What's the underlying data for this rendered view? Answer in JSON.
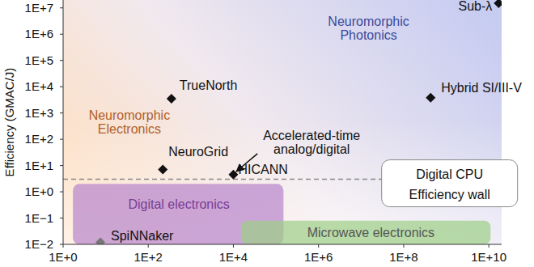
{
  "chart_data": {
    "type": "scatter",
    "log": true,
    "grid": false,
    "y_label": "Efficiency (GMAC/J)",
    "xlim": [
      1,
      20000000000
    ],
    "ylim": [
      0.01,
      20000000
    ],
    "xticks": [
      {
        "value": 1,
        "label": "1E+0"
      },
      {
        "value": 100,
        "label": "1E+2"
      },
      {
        "value": 10000,
        "label": "1E+4"
      },
      {
        "value": 1000000,
        "label": "1E+6"
      },
      {
        "value": 100000000,
        "label": "1E+8"
      },
      {
        "value": 10000000000,
        "label": "1E+10"
      }
    ],
    "yticks": [
      {
        "value": 10000000,
        "label": "1E+7"
      },
      {
        "value": 1000000,
        "label": "1E+6"
      },
      {
        "value": 100000,
        "label": "1E+5"
      },
      {
        "value": 10000,
        "label": "1E+4"
      },
      {
        "value": 1000,
        "label": "1E+3"
      },
      {
        "value": 100,
        "label": "1E+2"
      },
      {
        "value": 10,
        "label": "1E+1"
      },
      {
        "value": 1,
        "label": "1E+0"
      },
      {
        "value": 0.1,
        "label": "1E−1"
      },
      {
        "value": 0.01,
        "label": "1E−2"
      }
    ],
    "x": [
      350,
      220,
      10000,
      430000000,
      17000000000,
      7.5
    ],
    "values": [
      3500,
      7,
      4.5,
      3800,
      15000000,
      0.012
    ],
    "labels": [
      "TrueNorth",
      "NeuroGrid",
      "HICANN",
      "Hybrid SI/III-V",
      "Sub-λ",
      "SpiNNaker"
    ],
    "colors": [
      "#111111",
      "#111111",
      "#111111",
      "#111111",
      "#111111",
      "#777777"
    ],
    "marker": "diamond",
    "regions": [
      {
        "label": "Digital electronics",
        "xlim": [
          1.7,
          150000
        ],
        "ylim": [
          0.01,
          2
        ],
        "label_xy": [
          525,
          0.23
        ],
        "color": "#b784cc",
        "text_color": "#7a3c95"
      },
      {
        "label": "Microwave electronics",
        "xlim": [
          15000,
          11000000000
        ],
        "ylim": [
          0.01,
          0.08
        ],
        "label_xy": [
          17000000,
          0.019
        ],
        "color": "#9ccf86",
        "text_color": "#555555"
      }
    ],
    "reference_line": {
      "value": 3,
      "lines": [
        "Digital CPU",
        "Efficiency wall"
      ],
      "x": 1200000000,
      "line_style": "dashed",
      "color": "#888888"
    },
    "annotations": [
      {
        "lines": [
          "Neuromorphic",
          "Photonics"
        ],
        "x": 15000000,
        "y": 2000000,
        "color": "#3b4a9c"
      },
      {
        "lines": [
          "Neuromorphic",
          "Electronics"
        ],
        "x": 36,
        "y": 560,
        "color": "#b0602a"
      },
      {
        "lines": [
          "Accelerated-time",
          "analog/digital"
        ],
        "x": 690000,
        "y": 95,
        "arrow_to": [
          11700,
          5.9
        ],
        "color": "#111111"
      }
    ]
  }
}
